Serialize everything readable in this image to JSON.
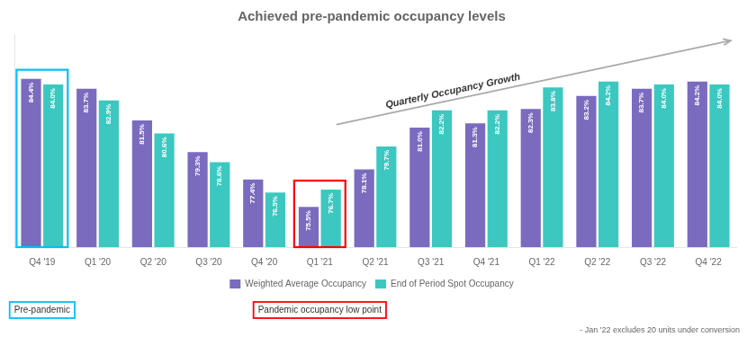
{
  "chart_data": {
    "type": "bar",
    "title": "Achieved pre-pandemic occupancy levels",
    "categories": [
      "Q4 '19",
      "Q1 '20",
      "Q2 '20",
      "Q3 '20",
      "Q4 '20",
      "Q1 '21",
      "Q2 '21",
      "Q3 '21",
      "Q4 '21",
      "Q1 '22",
      "Q2 '22",
      "Q3 '22",
      "Q4 '22"
    ],
    "series": [
      {
        "name": "Weighted Average Occupancy",
        "color": "#7B6BBF",
        "values": [
          84.4,
          83.7,
          81.5,
          79.3,
          77.4,
          75.5,
          78.1,
          81.0,
          81.3,
          82.3,
          83.2,
          83.7,
          84.2
        ],
        "value_labels": [
          "84.4%",
          "83.7%",
          "81.5%",
          "79.3%",
          "77.4%",
          "75.5%",
          "78.1%",
          "81.0%",
          "81.3%",
          "82.3%",
          "83.2%",
          "83.7%",
          "84.2%"
        ]
      },
      {
        "name": "End of Period Spot Occupancy",
        "color": "#3CC8C0",
        "values": [
          84.0,
          82.9,
          80.6,
          78.6,
          76.5,
          76.7,
          79.7,
          82.2,
          82.2,
          83.8,
          84.2,
          84.0,
          84.0
        ],
        "value_labels": [
          "84.0%",
          "82.9%",
          "80.6%",
          "78.6%",
          "76.5%",
          "76.7%",
          "79.7%",
          "82.2%",
          "82.2%",
          "83.8%",
          "84.2%",
          "84.0%",
          "84.0%"
        ]
      }
    ],
    "ylim": [
      72.7,
      87.5
    ],
    "tick_labels": "x",
    "grid": false,
    "legend": "bottom",
    "data_labels": true,
    "annotations": [
      {
        "type": "box",
        "text": "Pre-pandemic",
        "category": "Q4 '19",
        "color": "#00BFFF"
      },
      {
        "type": "box",
        "text": "Pandemic occupancy low point",
        "category": "Q1 '21",
        "color": "red"
      },
      {
        "type": "arrow",
        "text": "Quarterly Occupancy Growth"
      },
      {
        "type": "note",
        "text": "- Jan '22 excludes 20 units under conversion"
      }
    ]
  }
}
